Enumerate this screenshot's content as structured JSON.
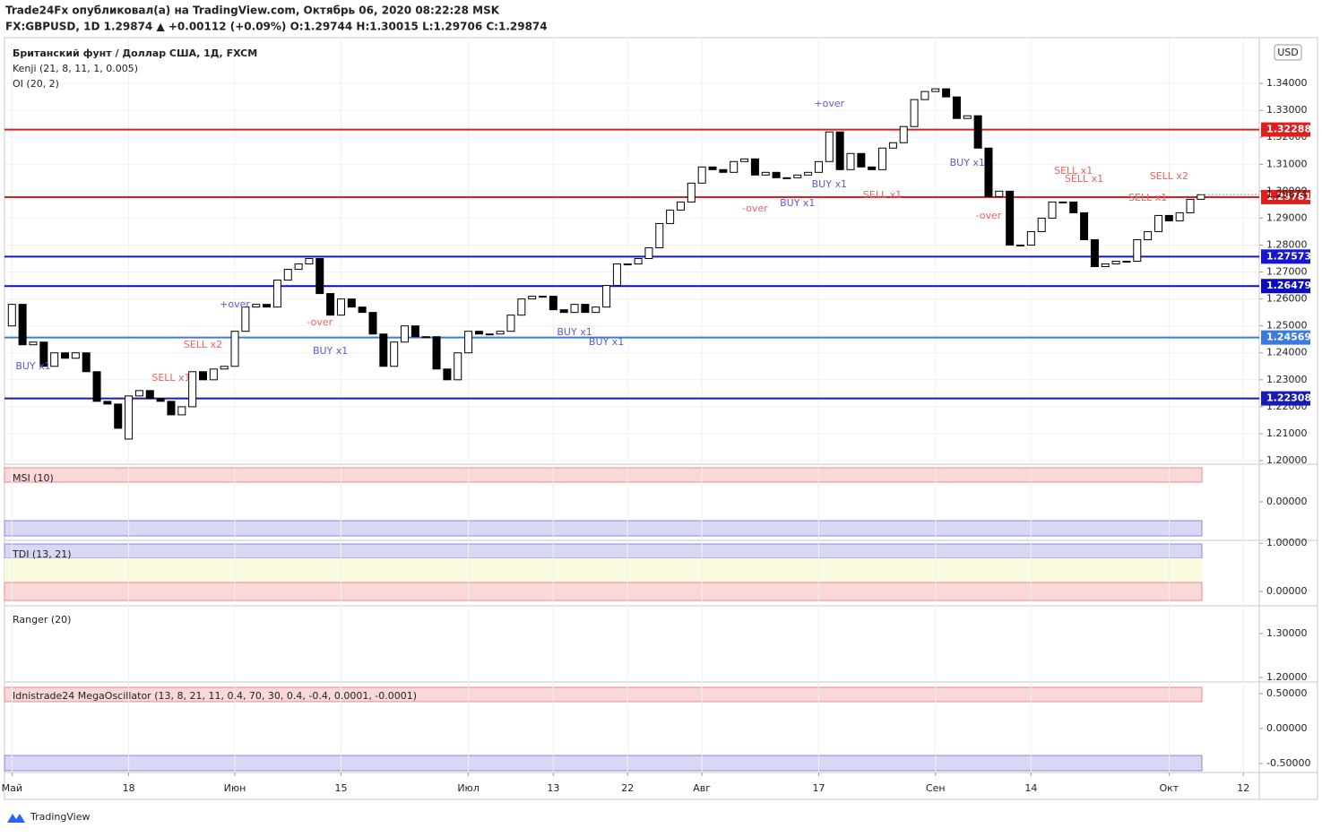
{
  "header": {
    "publisher": "Trade24Fx опубликовал(а) на TradingView.com, Октябрь 06, 2020 08:22:28 MSK",
    "symbol_line": "FX:GBPUSD, 1D  1.29874 ▲ +0.00112 (+0.09%) O:1.29744 H:1.30015 L:1.29706 C:1.29874"
  },
  "footer": {
    "logo": "TradingView"
  },
  "chart_data": [
    {
      "type": "candlestick",
      "title": "Британский фунт / Доллар США, 1Д, FXCM",
      "indicators": [
        "Kenji (21, 8, 11, 1, 0.005)",
        "OI (20, 2)"
      ],
      "currency": "USD",
      "xlim": [
        -0.7,
        117.5
      ],
      "xticks": [
        {
          "value": 0,
          "label": "Май"
        },
        {
          "value": 11,
          "label": "18"
        },
        {
          "value": 21,
          "label": "Июн"
        },
        {
          "value": 31,
          "label": "15"
        },
        {
          "value": 43,
          "label": "Июл"
        },
        {
          "value": 51,
          "label": "13"
        },
        {
          "value": 58,
          "label": "22"
        },
        {
          "value": 65,
          "label": "Авг"
        },
        {
          "value": 76,
          "label": "17"
        },
        {
          "value": 87,
          "label": "Сен"
        },
        {
          "value": 96,
          "label": "14"
        },
        {
          "value": 109,
          "label": "Окт"
        },
        {
          "value": 116,
          "label": "12"
        }
      ],
      "ylim": [
        1.199,
        1.357
      ],
      "yticks": [
        {
          "value": 1.2,
          "label": "1.20000"
        },
        {
          "value": 1.21,
          "label": "1.21000"
        },
        {
          "value": 1.22,
          "label": "1.22000"
        },
        {
          "value": 1.23,
          "label": "1.23000"
        },
        {
          "value": 1.24,
          "label": "1.24000"
        },
        {
          "value": 1.25,
          "label": "1.25000"
        },
        {
          "value": 1.26,
          "label": "1.26000"
        },
        {
          "value": 1.27,
          "label": "1.27000"
        },
        {
          "value": 1.28,
          "label": "1.28000"
        },
        {
          "value": 1.29,
          "label": "1.29000"
        },
        {
          "value": 1.3,
          "label": "1.30000"
        },
        {
          "value": 1.31,
          "label": "1.31000"
        },
        {
          "value": 1.32,
          "label": "1.32000"
        },
        {
          "value": 1.33,
          "label": "1.33000"
        },
        {
          "value": 1.34,
          "label": "1.34000"
        }
      ],
      "open": [
        1.25,
        1.258,
        1.243,
        1.244,
        1.235,
        1.24,
        1.238,
        1.24,
        1.233,
        1.222,
        1.221,
        1.208,
        1.224,
        1.226,
        1.223,
        1.222,
        1.217,
        1.22,
        1.233,
        1.23,
        1.234,
        1.235,
        1.248,
        1.257,
        1.258,
        1.257,
        1.267,
        1.271,
        1.273,
        1.275,
        1.262,
        1.254,
        1.26,
        1.257,
        1.255,
        1.247,
        1.235,
        1.244,
        1.25,
        1.246,
        1.246,
        1.234,
        1.23,
        1.24,
        1.248,
        1.247,
        1.247,
        1.248,
        1.254,
        1.26,
        1.261,
        1.261,
        1.256,
        1.255,
        1.258,
        1.255,
        1.257,
        1.265,
        1.273,
        1.273,
        1.275,
        1.279,
        1.288,
        1.293,
        1.296,
        1.303,
        1.309,
        1.308,
        1.307,
        1.311,
        1.312,
        1.306,
        1.307,
        1.305,
        1.305,
        1.306,
        1.307,
        1.311,
        1.322,
        1.308,
        1.314,
        1.309,
        1.308,
        1.316,
        1.318,
        1.324,
        1.334,
        1.337,
        1.338,
        1.335,
        1.327,
        1.328,
        1.316,
        1.298,
        1.3,
        1.28,
        1.28,
        1.285,
        1.29,
        1.296,
        1.296,
        1.292,
        1.282,
        1.272,
        1.273,
        1.274,
        1.274,
        1.282,
        1.285,
        1.291,
        1.289,
        1.292,
        1.297
      ],
      "close": [
        1.258,
        1.243,
        1.244,
        1.235,
        1.24,
        1.238,
        1.24,
        1.233,
        1.222,
        1.221,
        1.212,
        1.224,
        1.226,
        1.223,
        1.222,
        1.217,
        1.22,
        1.233,
        1.23,
        1.234,
        1.235,
        1.248,
        1.257,
        1.258,
        1.257,
        1.267,
        1.271,
        1.273,
        1.275,
        1.262,
        1.254,
        1.26,
        1.257,
        1.255,
        1.247,
        1.235,
        1.244,
        1.25,
        1.246,
        1.246,
        1.234,
        1.23,
        1.24,
        1.248,
        1.247,
        1.247,
        1.248,
        1.254,
        1.26,
        1.261,
        1.261,
        1.256,
        1.255,
        1.258,
        1.255,
        1.257,
        1.265,
        1.273,
        1.273,
        1.275,
        1.279,
        1.288,
        1.293,
        1.296,
        1.303,
        1.309,
        1.308,
        1.307,
        1.311,
        1.312,
        1.306,
        1.307,
        1.305,
        1.305,
        1.306,
        1.307,
        1.311,
        1.322,
        1.308,
        1.314,
        1.309,
        1.308,
        1.316,
        1.318,
        1.324,
        1.334,
        1.337,
        1.338,
        1.335,
        1.327,
        1.328,
        1.316,
        1.298,
        1.3,
        1.28,
        1.28,
        1.285,
        1.29,
        1.296,
        1.296,
        1.292,
        1.282,
        1.272,
        1.273,
        1.274,
        1.274,
        1.282,
        1.285,
        1.291,
        1.289,
        1.292,
        1.297,
        1.2987
      ],
      "current_price": 1.29874,
      "levels": [
        {
          "value": 1.32288,
          "color": "#e21d1d"
        },
        {
          "value": 1.29781,
          "color": "#e21d1d"
        },
        {
          "value": 1.27573,
          "color": "#1515d6"
        },
        {
          "value": 1.26479,
          "color": "#0d0dc0"
        },
        {
          "value": 1.24569,
          "color": "#3b7be0"
        },
        {
          "value": 1.22308,
          "color": "#1a1ab8"
        }
      ],
      "annotations": [
        {
          "text": "BUY x1",
          "x": 2,
          "y": 1.2349,
          "color": "#5b5bd6"
        },
        {
          "text": "SELL x1",
          "x": 15,
          "y": 1.2306,
          "color": "#f06060"
        },
        {
          "text": "SELL x2",
          "x": 18,
          "y": 1.2429,
          "color": "#f06060"
        },
        {
          "text": "+over",
          "x": 21,
          "y": 1.2579,
          "color": "#5b5bd6"
        },
        {
          "text": "-over",
          "x": 29,
          "y": 1.2512,
          "color": "#f06060"
        },
        {
          "text": "BUY x1",
          "x": 30,
          "y": 1.2406,
          "color": "#5b5bd6"
        },
        {
          "text": "BUY x1",
          "x": 53,
          "y": 1.2476,
          "color": "#5b5bd6"
        },
        {
          "text": "BUY x1",
          "x": 56,
          "y": 1.2439,
          "color": "#5b5bd6"
        },
        {
          "text": "-over",
          "x": 70,
          "y": 1.2935,
          "color": "#f06060"
        },
        {
          "text": "BUY x1",
          "x": 74,
          "y": 1.2955,
          "color": "#5b5bd6"
        },
        {
          "text": "+over",
          "x": 77,
          "y": 1.3324,
          "color": "#5b5bd6"
        },
        {
          "text": "BUY x1",
          "x": 77,
          "y": 1.3024,
          "color": "#5b5bd6"
        },
        {
          "text": "SELL x1",
          "x": 82,
          "y": 1.2984,
          "color": "#f06060"
        },
        {
          "text": "BUY x1",
          "x": 90,
          "y": 1.3104,
          "color": "#5b5bd6"
        },
        {
          "text": "-over",
          "x": 92,
          "y": 1.2908,
          "color": "#f06060"
        },
        {
          "text": "SELL x1",
          "x": 100,
          "y": 1.3074,
          "color": "#f06060"
        },
        {
          "text": "SELL x1",
          "x": 101,
          "y": 1.3044,
          "color": "#f06060"
        },
        {
          "text": "SELL x1",
          "x": 107,
          "y": 1.2974,
          "color": "#f06060"
        },
        {
          "text": "SELL x2",
          "x": 109,
          "y": 1.3054,
          "color": "#f06060"
        }
      ]
    },
    {
      "type": "oscillator",
      "title": "MSI (10)",
      "ylim": [
        -1,
        1
      ],
      "yticks": [
        {
          "value": 0,
          "label": "0.00000"
        }
      ]
    },
    {
      "type": "oscillator",
      "title": "TDI (13, 21)",
      "ylim": [
        -0.28,
        1.06
      ],
      "yticks": [
        {
          "value": 1,
          "label": "1.00000"
        },
        {
          "value": 0,
          "label": "0.00000"
        }
      ]
    },
    {
      "type": "oscillator",
      "title": "Ranger (20)",
      "ylim": [
        1.192,
        1.363
      ],
      "yticks": [
        {
          "value": 1.3,
          "label": "1.30000"
        },
        {
          "value": 1.2,
          "label": "1.20000"
        }
      ]
    },
    {
      "type": "oscillator",
      "title": "Idnistrade24 MegaOscillator (13, 8, 21, 11, 0.4, 70, 30, 0.4, -0.4, 0.0001, -0.0001)",
      "ylim": [
        -0.628,
        0.667
      ],
      "yticks": [
        {
          "value": 0.5,
          "label": "0.50000"
        },
        {
          "value": 0,
          "label": "0.00000"
        },
        {
          "value": -0.5,
          "label": "-0.50000"
        }
      ]
    }
  ]
}
